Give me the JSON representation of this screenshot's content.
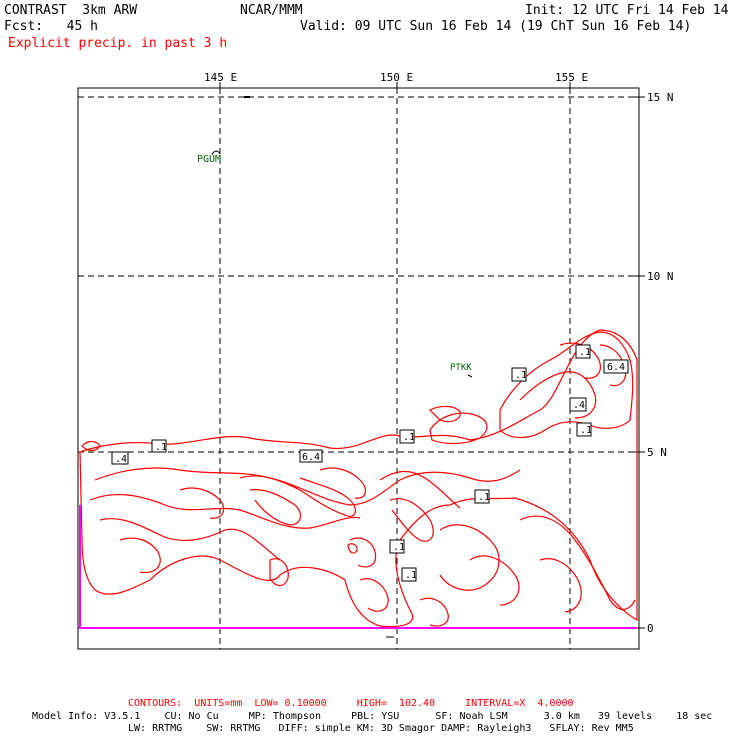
{
  "header": {
    "model": "CONTRAST  3km ARW",
    "org": "NCAR/MMM",
    "init": "Init: 12 UTC Fri 14 Feb 14",
    "fcst": "Fcst:   45 h",
    "valid": "Valid: 09 UTC Sun 16 Feb 14 (19 ChT Sun 16 Feb 14)",
    "field": "Explicit precip. in past 3 h"
  },
  "map": {
    "lon_labels": [
      "145 E",
      "150 E",
      "155 E"
    ],
    "lat_labels": [
      "15 N",
      "10 N",
      "5 N",
      "0"
    ],
    "stations": [
      {
        "id": "PGUM",
        "label": "PGUM"
      },
      {
        "id": "PTKK",
        "label": "PTKK"
      }
    ],
    "contour_labels": [
      ".4",
      ".1",
      "6.4",
      ".1",
      ".1",
      ".1",
      ".1",
      ".1",
      ".1",
      "6.4",
      ".4",
      ".1"
    ],
    "colors": {
      "contour": "#ff0000",
      "grid": "#000000",
      "boundary": "#ff00ff",
      "station": "#006400"
    }
  },
  "footer": {
    "contours": "CONTOURS:  UNITS=mm  LOW= 0.10000     HIGH=  102.40     INTERVAL=X  4.0000",
    "model_info": "Model Info: V3.5.1    CU: No Cu     MP: Thompson     PBL: YSU      SF: Noah LSM      3.0 km   39 levels    18 sec",
    "model_info2": "LW: RRTMG    SW: RRTMG   DIFF: simple KM: 3D Smagor DAMP: Rayleigh3   SFLAY: Rev MM5"
  }
}
